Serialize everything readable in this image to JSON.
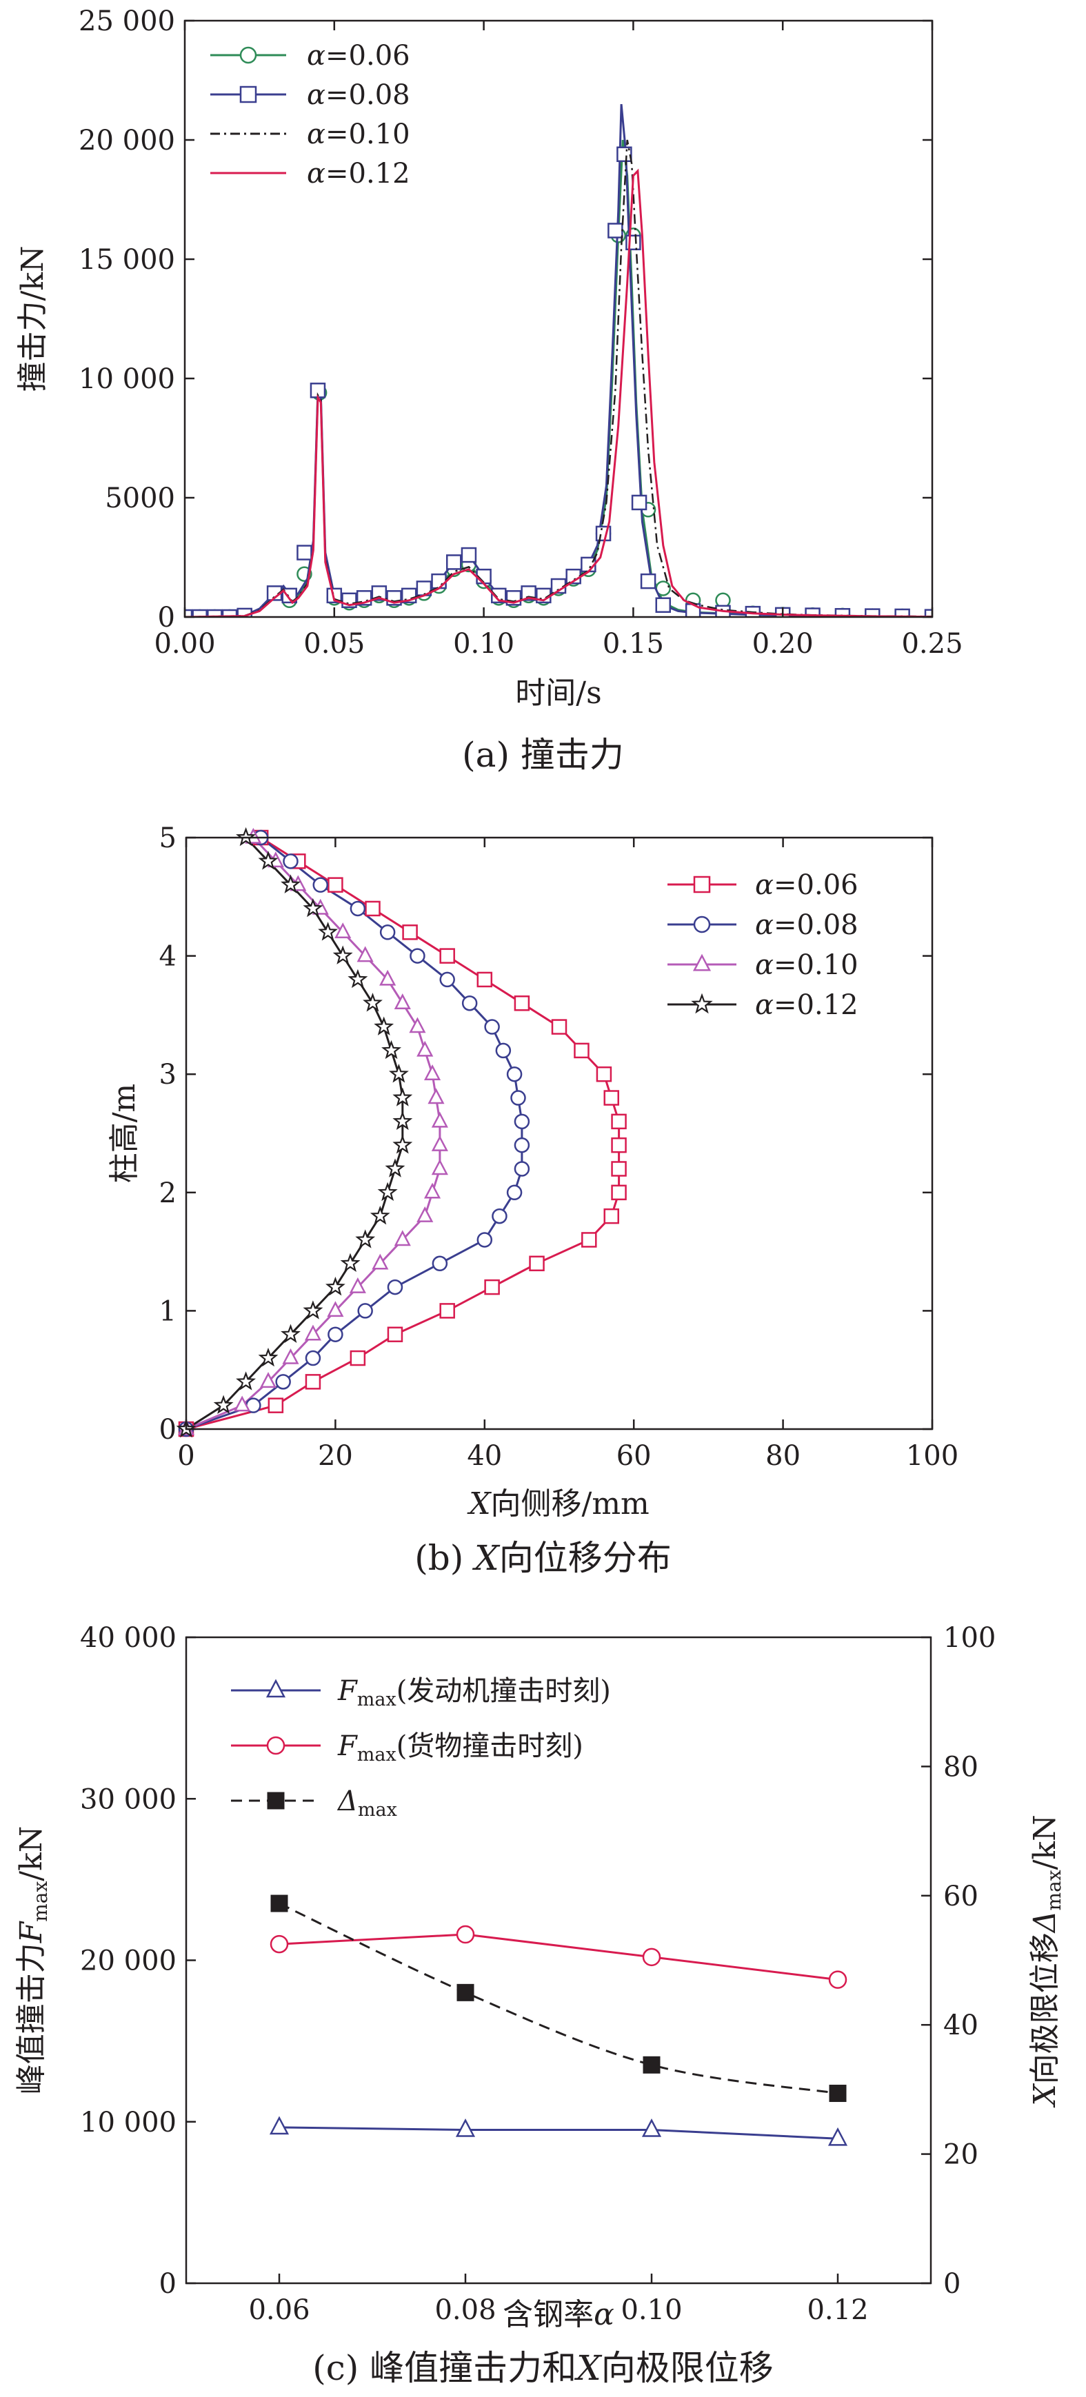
{
  "chart_data": [
    {
      "id": "a",
      "type": "line",
      "caption": "(a) 撞击力",
      "xlabel": "时间/s",
      "ylabel": "撞击力/kN",
      "xlim": [
        0,
        0.25
      ],
      "ylim": [
        0,
        25000
      ],
      "xticks": [
        0.0,
        0.05,
        0.1,
        0.15,
        0.2,
        0.25
      ],
      "xtick_labels": [
        "0.00",
        "0.05",
        "0.10",
        "0.15",
        "0.20",
        "0.25"
      ],
      "yticks": [
        0,
        5000,
        10000,
        15000,
        20000,
        25000
      ],
      "ytick_labels": [
        "0",
        "5000",
        "10 000",
        "15 000",
        "20 000",
        "25 000"
      ],
      "legend_position": "top-left",
      "series": [
        {
          "name": "α=0.06",
          "color": "#2e8b57",
          "marker": "circle",
          "dash": "solid",
          "x": [
            0.0,
            0.02,
            0.025,
            0.03,
            0.033,
            0.036,
            0.038,
            0.041,
            0.043,
            0.0445,
            0.0455,
            0.047,
            0.05,
            0.055,
            0.06,
            0.065,
            0.07,
            0.075,
            0.08,
            0.085,
            0.09,
            0.095,
            0.1,
            0.105,
            0.11,
            0.115,
            0.12,
            0.125,
            0.13,
            0.135,
            0.138,
            0.141,
            0.143,
            0.145,
            0.1465,
            0.148,
            0.1495,
            0.151,
            0.153,
            0.156,
            0.16,
            0.165,
            0.17,
            0.18,
            0.19,
            0.2,
            0.21,
            0.22,
            0.23,
            0.24,
            0.25
          ],
          "y": [
            0,
            50,
            300,
            900,
            1200,
            700,
            900,
            1500,
            3000,
            9400,
            9200,
            2500,
            800,
            600,
            700,
            900,
            700,
            800,
            1000,
            1300,
            2000,
            2200,
            1500,
            800,
            700,
            900,
            800,
            1200,
            1600,
            2000,
            2800,
            5000,
            10000,
            16000,
            20000,
            18500,
            14000,
            9000,
            4500,
            1800,
            600,
            300,
            200,
            150,
            100,
            80,
            60,
            40,
            30,
            20,
            10
          ],
          "marker_x": [
            0.0,
            0.005,
            0.01,
            0.015,
            0.02,
            0.035,
            0.04,
            0.045,
            0.05,
            0.055,
            0.06,
            0.065,
            0.07,
            0.075,
            0.08,
            0.085,
            0.09,
            0.095,
            0.1,
            0.105,
            0.11,
            0.115,
            0.12,
            0.125,
            0.13,
            0.135,
            0.14,
            0.145,
            0.15,
            0.155,
            0.16,
            0.17,
            0.18,
            0.19,
            0.2,
            0.21,
            0.22,
            0.23,
            0.24
          ],
          "marker_y": [
            0,
            0,
            0,
            0,
            50,
            700,
            1800,
            9400,
            800,
            600,
            700,
            900,
            700,
            800,
            1000,
            1300,
            2000,
            2200,
            1500,
            800,
            700,
            900,
            800,
            1200,
            1600,
            2000,
            3500,
            16000,
            16000,
            4500,
            1200,
            700,
            700,
            150,
            100,
            80,
            60,
            40,
            30
          ]
        },
        {
          "name": "α=0.08",
          "color": "#3a3e8f",
          "marker": "square",
          "dash": "solid",
          "x": [
            0.0,
            0.02,
            0.025,
            0.03,
            0.033,
            0.036,
            0.038,
            0.041,
            0.043,
            0.0445,
            0.0455,
            0.047,
            0.05,
            0.055,
            0.06,
            0.065,
            0.07,
            0.075,
            0.08,
            0.085,
            0.09,
            0.095,
            0.1,
            0.105,
            0.11,
            0.115,
            0.12,
            0.125,
            0.13,
            0.135,
            0.138,
            0.141,
            0.143,
            0.145,
            0.146,
            0.1475,
            0.149,
            0.151,
            0.153,
            0.156,
            0.16,
            0.165,
            0.17,
            0.18,
            0.19,
            0.2,
            0.21,
            0.22,
            0.23,
            0.24,
            0.25
          ],
          "y": [
            0,
            60,
            350,
            1000,
            1300,
            800,
            1000,
            1600,
            3200,
            9500,
            9300,
            2700,
            900,
            700,
            800,
            1000,
            800,
            900,
            1200,
            1500,
            2300,
            2600,
            1700,
            900,
            800,
            1000,
            900,
            1300,
            1700,
            2200,
            3000,
            5500,
            11000,
            17000,
            21500,
            19500,
            14500,
            8500,
            4000,
            1600,
            500,
            250,
            180,
            140,
            90,
            70,
            50,
            40,
            30,
            20,
            10
          ],
          "marker_x": [
            0.0,
            0.005,
            0.01,
            0.015,
            0.02,
            0.03,
            0.035,
            0.04,
            0.0445,
            0.05,
            0.055,
            0.06,
            0.065,
            0.07,
            0.075,
            0.08,
            0.085,
            0.09,
            0.095,
            0.1,
            0.105,
            0.11,
            0.115,
            0.12,
            0.125,
            0.13,
            0.135,
            0.14,
            0.144,
            0.147,
            0.15,
            0.152,
            0.155,
            0.16,
            0.17,
            0.18,
            0.19,
            0.2,
            0.21,
            0.22,
            0.23,
            0.24,
            0.25
          ],
          "marker_y": [
            0,
            0,
            0,
            0,
            60,
            1000,
            900,
            2700,
            9500,
            900,
            700,
            800,
            1000,
            800,
            900,
            1200,
            1500,
            2300,
            2600,
            1700,
            900,
            800,
            1000,
            900,
            1300,
            1700,
            2200,
            3500,
            16200,
            19400,
            15700,
            4800,
            1500,
            500,
            250,
            180,
            140,
            90,
            70,
            50,
            40,
            30,
            10
          ]
        },
        {
          "name": "α=0.10",
          "color": "#231f20",
          "marker": "none",
          "dash": "dashdot",
          "x": [
            0.0,
            0.02,
            0.025,
            0.03,
            0.033,
            0.036,
            0.038,
            0.041,
            0.043,
            0.0445,
            0.0455,
            0.047,
            0.05,
            0.055,
            0.06,
            0.065,
            0.07,
            0.075,
            0.08,
            0.085,
            0.09,
            0.095,
            0.1,
            0.105,
            0.11,
            0.115,
            0.12,
            0.125,
            0.13,
            0.135,
            0.138,
            0.141,
            0.144,
            0.146,
            0.148,
            0.1495,
            0.151,
            0.153,
            0.155,
            0.158,
            0.162,
            0.167,
            0.172,
            0.18,
            0.19,
            0.2,
            0.21,
            0.22,
            0.23,
            0.24,
            0.25
          ],
          "y": [
            0,
            50,
            280,
            850,
            1150,
            650,
            850,
            1400,
            2900,
            9300,
            9100,
            2400,
            750,
            550,
            650,
            850,
            650,
            750,
            950,
            1250,
            1900,
            2100,
            1450,
            750,
            650,
            850,
            750,
            1150,
            1550,
            1950,
            2700,
            4800,
            9500,
            15500,
            20000,
            19000,
            15500,
            11000,
            7000,
            3000,
            1200,
            700,
            500,
            300,
            200,
            120,
            80,
            60,
            40,
            30,
            20
          ],
          "marker_x": [],
          "marker_y": []
        },
        {
          "name": "α=0.12",
          "color": "#d81b4f",
          "marker": "none",
          "dash": "solid",
          "x": [
            0.0,
            0.02,
            0.025,
            0.03,
            0.033,
            0.036,
            0.038,
            0.041,
            0.043,
            0.0445,
            0.0455,
            0.047,
            0.05,
            0.055,
            0.06,
            0.065,
            0.07,
            0.075,
            0.08,
            0.085,
            0.09,
            0.095,
            0.1,
            0.105,
            0.11,
            0.115,
            0.12,
            0.125,
            0.13,
            0.135,
            0.139,
            0.142,
            0.145,
            0.148,
            0.15,
            0.1515,
            0.153,
            0.155,
            0.157,
            0.16,
            0.163,
            0.167,
            0.172,
            0.18,
            0.19,
            0.2,
            0.21,
            0.22,
            0.23,
            0.24,
            0.25
          ],
          "y": [
            0,
            40,
            250,
            800,
            1100,
            600,
            800,
            1300,
            2800,
            9200,
            9000,
            2300,
            700,
            500,
            600,
            800,
            600,
            700,
            900,
            1200,
            1800,
            2000,
            1400,
            700,
            600,
            800,
            700,
            1100,
            1500,
            1900,
            2500,
            4000,
            8000,
            14000,
            18500,
            18700,
            16000,
            11000,
            6500,
            3000,
            1300,
            700,
            400,
            250,
            150,
            100,
            70,
            50,
            30,
            20,
            10
          ],
          "marker_x": [],
          "marker_y": []
        }
      ]
    },
    {
      "id": "b",
      "type": "line",
      "caption_prefix": "(b) ",
      "caption_var": "X",
      "caption_suffix": "向位移分布",
      "xlabel_var": "X",
      "xlabel_rest": "向侧移/mm",
      "ylabel": "柱高/m",
      "xlim": [
        0,
        100
      ],
      "ylim": [
        0,
        5
      ],
      "xticks": [
        0,
        20,
        40,
        60,
        80,
        100
      ],
      "xtick_labels": [
        "0",
        "20",
        "40",
        "60",
        "80",
        "100"
      ],
      "yticks": [
        0,
        1,
        2,
        3,
        4,
        5
      ],
      "ytick_labels": [
        "0",
        "1",
        "2",
        "3",
        "4",
        "5"
      ],
      "legend_position": "top-right",
      "y": [
        0,
        0.2,
        0.4,
        0.6,
        0.8,
        1.0,
        1.2,
        1.4,
        1.6,
        1.8,
        2.0,
        2.2,
        2.4,
        2.6,
        2.8,
        3.0,
        3.2,
        3.4,
        3.6,
        3.8,
        4.0,
        4.2,
        4.4,
        4.6,
        4.8,
        5.0
      ],
      "series": [
        {
          "name": "α=0.06",
          "color": "#d81b4f",
          "marker": "square",
          "x": [
            0,
            12,
            17,
            23,
            28,
            35,
            41,
            47,
            54,
            57,
            58,
            58,
            58,
            58,
            57,
            56,
            53,
            50,
            45,
            40,
            35,
            30,
            25,
            20,
            15,
            10
          ]
        },
        {
          "name": "α=0.08",
          "color": "#3a3e8f",
          "marker": "circle",
          "x": [
            0,
            9,
            13,
            17,
            20,
            24,
            28,
            34,
            40,
            42,
            44,
            45,
            45,
            45,
            44.5,
            44,
            42.5,
            41,
            38,
            35,
            31,
            27,
            23,
            18,
            14,
            10
          ]
        },
        {
          "name": "α=0.10",
          "color": "#b55bb7",
          "marker": "triangle",
          "x": [
            0,
            7.5,
            11,
            14,
            17,
            20,
            23,
            26,
            29,
            32,
            33,
            34,
            34,
            34,
            33.5,
            33,
            32,
            31,
            29,
            27,
            24,
            21,
            18,
            15,
            12,
            9
          ]
        },
        {
          "name": "α=0.12",
          "color": "#231f20",
          "marker": "star",
          "x": [
            0,
            5,
            8,
            11,
            14,
            17,
            20,
            22,
            24,
            26,
            27,
            28,
            29,
            29,
            29,
            28.5,
            27.5,
            26.5,
            25,
            23,
            21,
            19,
            17,
            14,
            11,
            8
          ]
        }
      ]
    },
    {
      "id": "c",
      "type": "line",
      "caption_prefix": "(c) 峰值撞击力和",
      "caption_var": "X",
      "caption_suffix": "向极限位移",
      "xlabel_text": "含钢率",
      "xlabel_var": "α",
      "ylabel_text": "峰值撞击力",
      "ylabel_var": "F",
      "ylabel_sub": "max",
      "ylabel_unit": "/kN",
      "y2label_var": "X",
      "y2label_text": "向极限位移",
      "y2label_var2": "Δ",
      "y2label_sub": "max",
      "y2label_unit": "/kN",
      "xlim": [
        0.05,
        0.13
      ],
      "ylim": [
        0,
        40000
      ],
      "y2lim": [
        0,
        100
      ],
      "xticks": [
        0.06,
        0.08,
        0.1,
        0.12
      ],
      "xtick_labels": [
        "0.06",
        "0.08",
        "0.10",
        "0.12"
      ],
      "yticks": [
        0,
        10000,
        20000,
        30000,
        40000
      ],
      "ytick_labels": [
        "0",
        "10 000",
        "20 000",
        "30 000",
        "40 000"
      ],
      "y2ticks": [
        0,
        20,
        40,
        60,
        80,
        100
      ],
      "y2tick_labels": [
        "0",
        "20",
        "40",
        "60",
        "80",
        "100"
      ],
      "legend_position": "top-left",
      "x": [
        0.06,
        0.08,
        0.1,
        0.12
      ],
      "series": [
        {
          "name_var": "F",
          "name_sub": "max",
          "name_rest": "(发动机撞击时刻)",
          "color": "#3a3e8f",
          "marker": "triangle",
          "axis": "left",
          "values": [
            9650,
            9500,
            9500,
            8950
          ]
        },
        {
          "name_var": "F",
          "name_sub": "max",
          "name_rest": "(货物撞击时刻)",
          "color": "#d81b4f",
          "marker": "circle",
          "axis": "left",
          "values": [
            21000,
            21600,
            20200,
            18800
          ]
        },
        {
          "name_var": "Δ",
          "name_sub": "max",
          "name_rest": "",
          "color": "#231f20",
          "marker": "filled-square",
          "axis": "right",
          "dash": "dashed",
          "values": [
            58.8,
            45.0,
            33.8,
            29.4
          ]
        }
      ]
    }
  ]
}
